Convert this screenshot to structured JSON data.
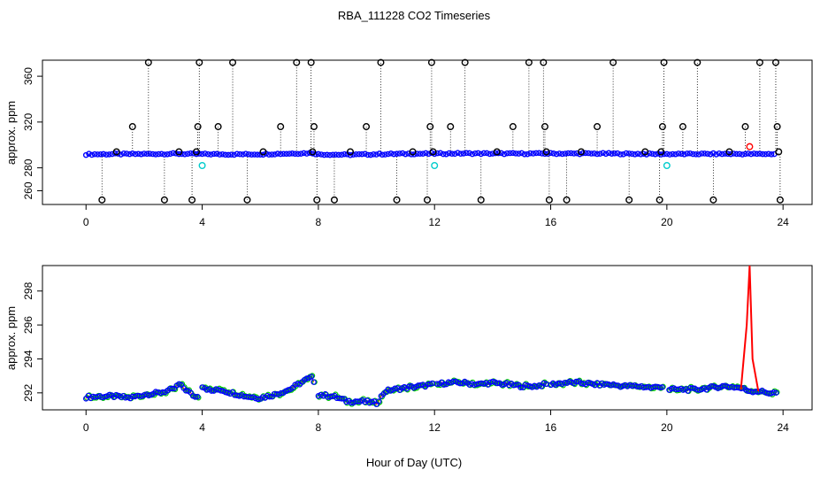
{
  "figure": {
    "title": "RBA_111228  CO2 Timeseries",
    "xlabel": "Hour of Day (UTC)"
  },
  "chart_data": [
    {
      "type": "scatter",
      "title": "",
      "xlabel": "",
      "ylabel": "approx. ppm",
      "xlim": [
        -1.5,
        25
      ],
      "ylim": [
        248,
        374
      ],
      "x_ticks": [
        0,
        4,
        8,
        12,
        16,
        20,
        24
      ],
      "y_ticks": [
        260,
        280,
        320,
        360
      ],
      "grid": false,
      "baseline": {
        "name": "",
        "color": "#0000ff",
        "x": [
          0,
          1,
          2,
          3,
          4,
          5,
          6,
          7,
          7.8,
          8,
          9,
          10,
          11,
          12,
          13,
          14,
          15,
          16,
          17,
          18,
          19,
          20,
          21,
          22,
          23,
          23.8
        ],
        "values": [
          291.8,
          292.0,
          292.1,
          292.3,
          292.0,
          291.8,
          291.9,
          292.5,
          292.9,
          291.8,
          291.4,
          291.9,
          292.3,
          292.4,
          292.6,
          292.5,
          292.4,
          292.5,
          292.5,
          292.4,
          292.2,
          292.0,
          292.1,
          292.2,
          292.1,
          292.1
        ]
      },
      "series": [
        {
          "name": "",
          "color": "#000000",
          "marker": "circle",
          "x": [
            0.55,
            1.05,
            1.6,
            2.15,
            2.7,
            3.2,
            3.65,
            3.8,
            3.85,
            3.9,
            4.55,
            5.05,
            5.55,
            6.1,
            6.7,
            7.25,
            7.75,
            7.8,
            7.85,
            7.95,
            8.55,
            9.1,
            9.65,
            10.15,
            10.7,
            11.25,
            11.75,
            11.85,
            11.9,
            11.95,
            12.55,
            13.05,
            13.6,
            14.15,
            14.7,
            15.25,
            15.75,
            15.8,
            15.85,
            15.95,
            16.55,
            17.05,
            17.6,
            18.15,
            18.7,
            19.25,
            19.75,
            19.8,
            19.85,
            19.9,
            20.55,
            21.05,
            21.6,
            22.15,
            22.7,
            23.2,
            23.75,
            23.8,
            23.85,
            23.9
          ],
          "values": [
            252,
            294,
            316,
            372,
            252,
            294,
            252,
            294,
            316,
            372,
            316,
            372,
            252,
            294,
            316,
            372,
            372,
            294,
            316,
            252,
            252,
            294,
            316,
            372,
            252,
            294,
            252,
            316,
            372,
            294,
            316,
            372,
            252,
            294,
            316,
            372,
            372,
            316,
            294,
            252,
            252,
            294,
            316,
            372,
            252,
            294,
            252,
            294,
            316,
            372,
            316,
            372,
            252,
            294,
            316,
            372,
            372,
            316,
            294,
            252
          ]
        },
        {
          "name": "",
          "color": "#00cccc",
          "marker": "circle",
          "x": [
            4.0,
            12.0,
            20.0
          ],
          "values": [
            282,
            282,
            282
          ]
        },
        {
          "name": "",
          "color": "#ff0000",
          "marker": "circle",
          "x": [
            22.85
          ],
          "values": [
            298.5
          ]
        }
      ]
    },
    {
      "type": "line",
      "title": "",
      "xlabel": "",
      "ylabel": "approx. ppm",
      "xlim": [
        -1.5,
        25
      ],
      "ylim": [
        291.0,
        299.5
      ],
      "x_ticks": [
        0,
        4,
        8,
        12,
        16,
        20,
        24
      ],
      "y_ticks": [
        292,
        294,
        296,
        298
      ],
      "grid": false,
      "spike": {
        "x": [
          22.55,
          22.75,
          22.85,
          22.95,
          23.15
        ],
        "values": [
          292.2,
          296.0,
          299.5,
          294.0,
          292.1
        ]
      },
      "series": [
        {
          "name": "",
          "color": "#0000ff",
          "x": [
            0,
            0.5,
            1,
            1.5,
            2,
            2.5,
            3,
            3.2,
            3.5,
            3.8,
            4,
            4.3,
            4.6,
            5,
            5.5,
            6,
            6.5,
            7,
            7.3,
            7.6,
            7.8,
            8,
            8.5,
            9,
            9.5,
            10,
            10.3,
            10.6,
            11,
            11.5,
            12,
            12.5,
            13,
            13.5,
            14,
            14.5,
            15,
            15.5,
            15.8,
            16,
            16.5,
            17,
            17.5,
            18,
            18.5,
            19,
            19.5,
            19.8,
            20,
            20.5,
            21,
            21.5,
            22,
            22.5,
            22.9,
            23.2,
            23.5,
            23.8
          ],
          "values": [
            291.75,
            291.8,
            291.8,
            291.7,
            291.9,
            292.0,
            292.2,
            292.5,
            292.1,
            291.7,
            292.4,
            292.1,
            292.2,
            292.0,
            291.8,
            291.7,
            291.9,
            292.2,
            292.5,
            292.8,
            292.9,
            291.9,
            291.8,
            291.5,
            291.5,
            291.4,
            292.1,
            292.2,
            292.3,
            292.4,
            292.5,
            292.6,
            292.6,
            292.5,
            292.6,
            292.5,
            292.4,
            292.4,
            292.5,
            292.5,
            292.6,
            292.6,
            292.5,
            292.5,
            292.4,
            292.4,
            292.3,
            292.4,
            292.2,
            292.2,
            292.2,
            292.3,
            292.4,
            292.3,
            292.1,
            292.1,
            292.0,
            292.0
          ]
        }
      ]
    }
  ]
}
